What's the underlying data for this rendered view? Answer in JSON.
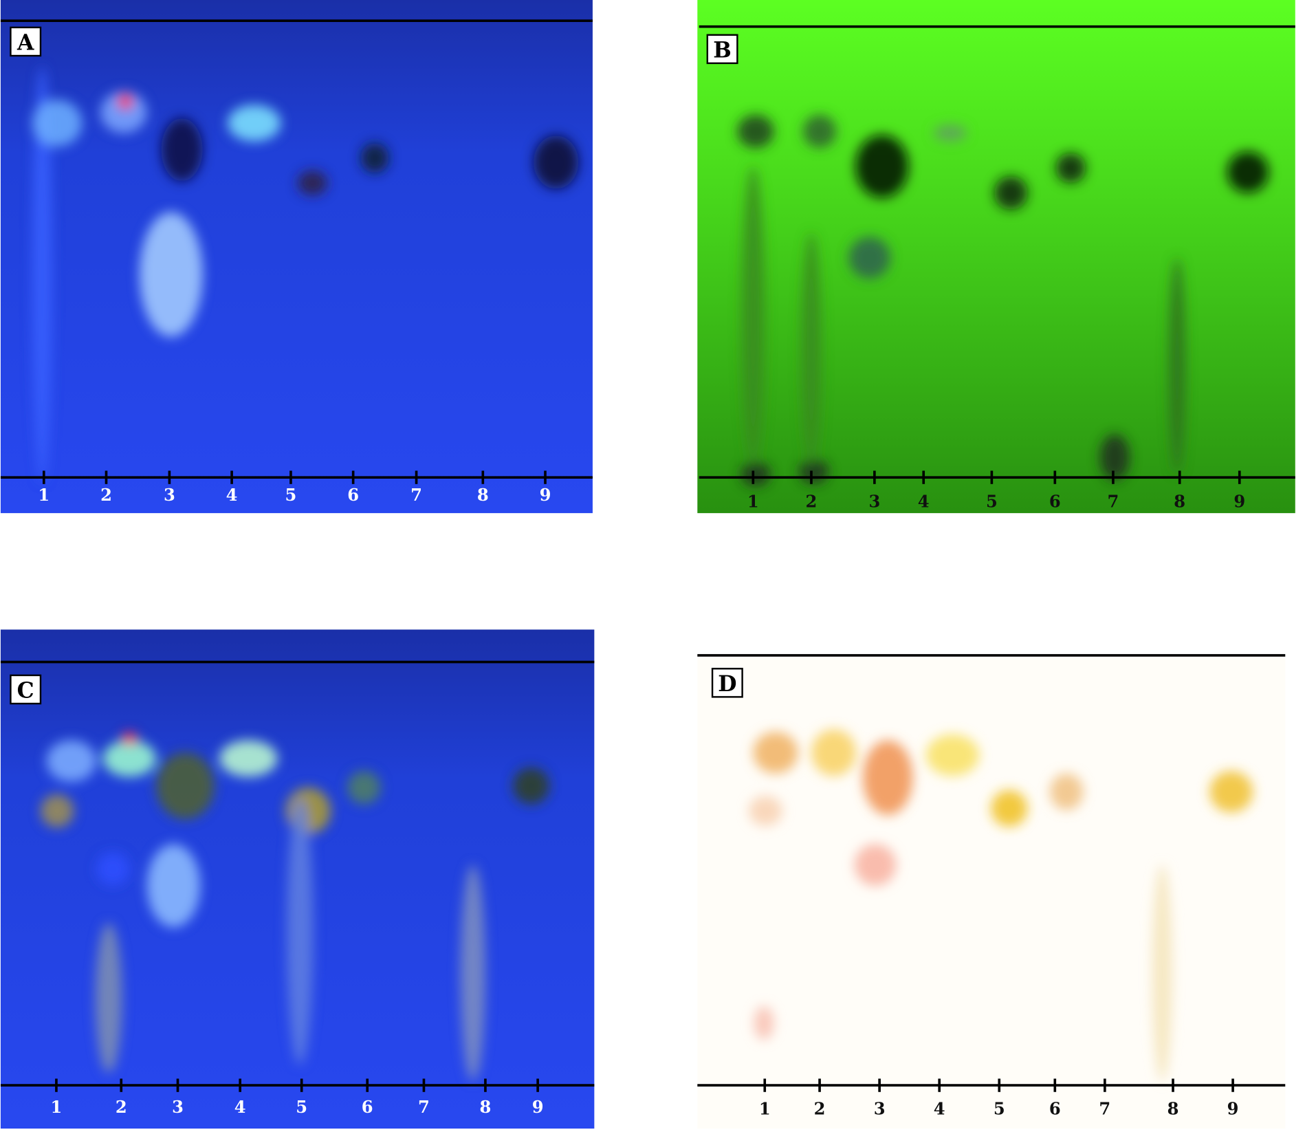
{
  "panels": [
    {
      "label": "A",
      "lanes": [
        "1",
        "2",
        "3",
        "4",
        "5",
        "6",
        "7",
        "8",
        "9"
      ]
    },
    {
      "label": "B",
      "lanes": [
        "1",
        "2",
        "3",
        "4",
        "5",
        "6",
        "7",
        "8",
        "9"
      ]
    },
    {
      "label": "C",
      "lanes": [
        "1",
        "2",
        "3",
        "4",
        "5",
        "6",
        "7",
        "8",
        "9"
      ]
    },
    {
      "label": "D",
      "lanes": [
        "1",
        "2",
        "3",
        "4",
        "5",
        "6",
        "7",
        "8",
        "9"
      ]
    }
  ]
}
